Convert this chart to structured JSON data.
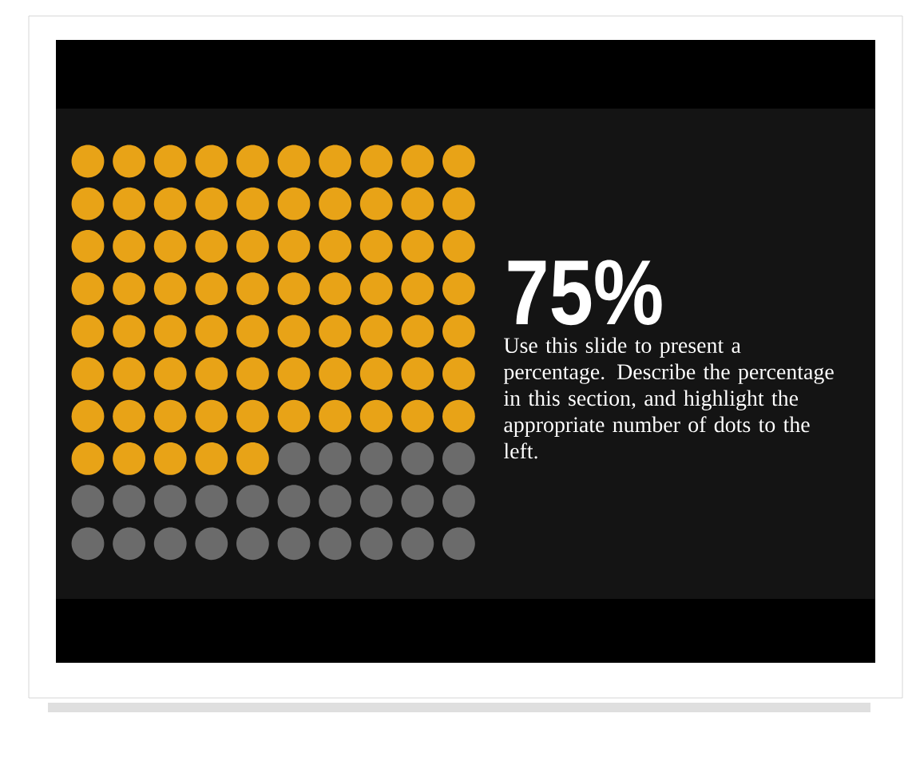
{
  "chart_data": {
    "type": "other",
    "values": [
      75
    ],
    "color": "#e8a317",
    "value_labels": [
      "75%"
    ],
    "annotations": [
      "Use this slide to present a percentage. Describe the percentage in this section, and highlight the appropriate number of dots to the left."
    ]
  }
}
